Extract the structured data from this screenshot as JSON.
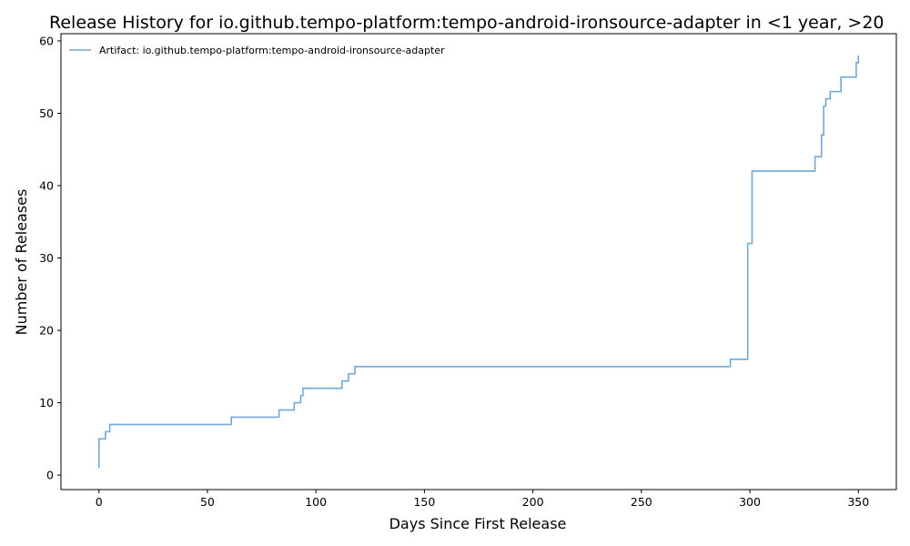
{
  "chart_data": {
    "type": "line",
    "step": "post",
    "title": "Release History for io.github.tempo-platform:tempo-android-ironsource-adapter in <1 year, >20",
    "xlabel": "Days Since First Release",
    "ylabel": "Number of Releases",
    "xlim": [
      -17.5,
      367.5
    ],
    "ylim": [
      -2,
      61
    ],
    "xticks": [
      0,
      50,
      100,
      150,
      200,
      250,
      300,
      350
    ],
    "yticks": [
      0,
      10,
      20,
      30,
      40,
      50,
      60
    ],
    "grid": false,
    "legend_position": "top-left",
    "series": [
      {
        "name": "Artifact: io.github.tempo-platform:tempo-android-ironsource-adapter",
        "color": "#6fa8d6",
        "x": [
          0,
          0,
          3,
          5,
          61,
          83,
          90,
          93,
          94,
          112,
          115,
          118,
          291,
          299,
          301,
          301,
          330,
          333,
          334,
          335,
          337,
          342,
          349,
          350
        ],
        "y": [
          1,
          5,
          6,
          7,
          8,
          9,
          10,
          11,
          12,
          13,
          14,
          15,
          16,
          32,
          38,
          42,
          44,
          47,
          51,
          52,
          53,
          55,
          57,
          58
        ]
      }
    ]
  }
}
